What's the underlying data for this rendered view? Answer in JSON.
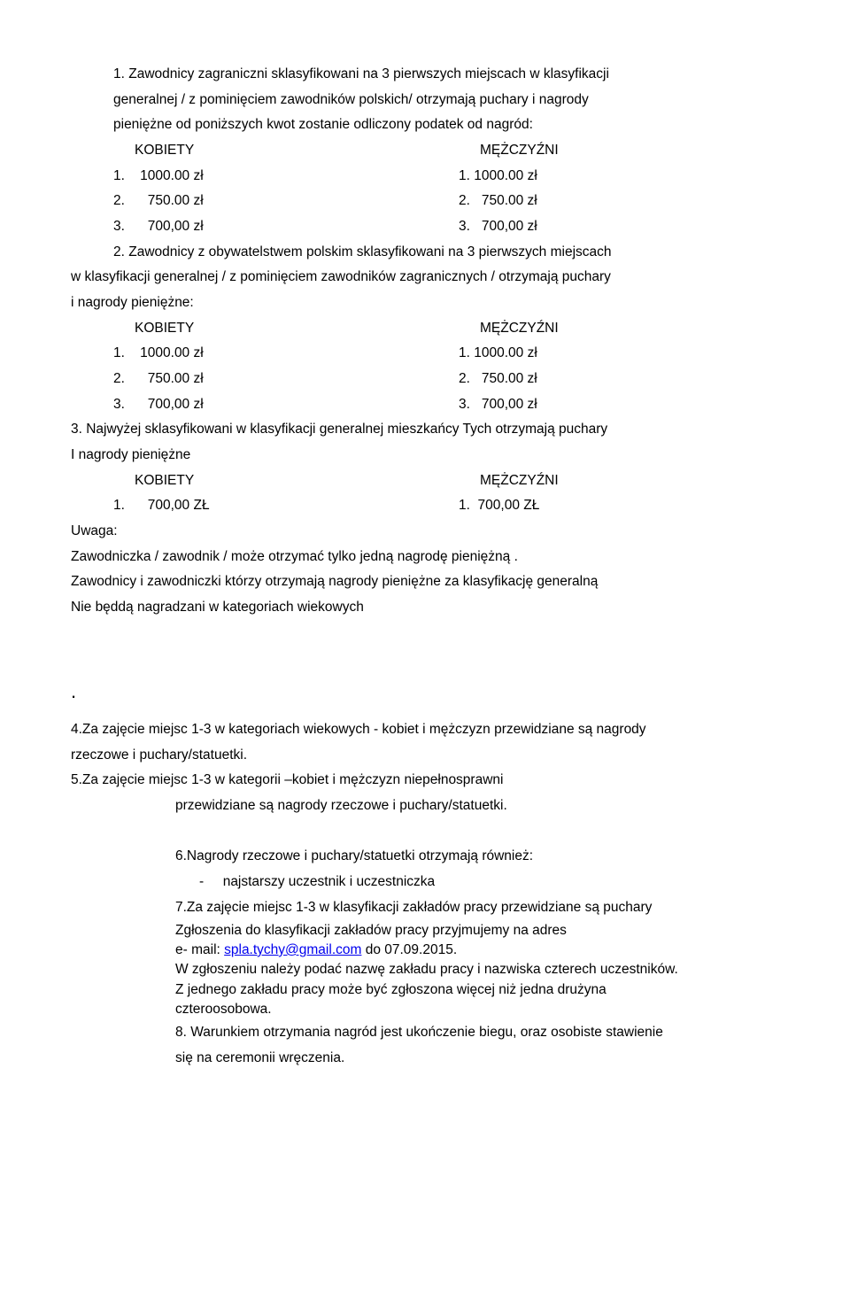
{
  "para1": {
    "line1": "1. Zawodnicy zagraniczni sklasyfikowani na 3 pierwszych miejscach w klasyfikacji",
    "line2": "generalnej / z pominięciem zawodników polskich/ otrzymają puchary i nagrody",
    "line3": "pieniężne od poniższych kwot zostanie odliczony podatek od nagród:"
  },
  "col_kobiety": "KOBIETY",
  "col_mezczyzni": "MĘŻCZYŹNI",
  "prize1": {
    "l": "1.    1000.00 zł",
    "r": "1. 1000.00 zł"
  },
  "prize2": {
    "l": "2.      750.00 zł",
    "r": "2.   750.00 zł"
  },
  "prize3": {
    "l": "3.      700,00 zł",
    "r": "3.   700,00 zł"
  },
  "para2": {
    "line1": "2.   Zawodnicy z obywatelstwem polskim sklasyfikowani na 3 pierwszych miejscach",
    "line2": "w klasyfikacji generalnej / z pominięciem zawodników zagranicznych / otrzymają puchary",
    "line3": " i nagrody pieniężne:"
  },
  "para3": {
    "line1": "3. Najwyżej sklasyfikowani w klasyfikacji generalnej mieszkańcy Tych otrzymają puchary",
    "line2": "I nagrody pieniężne"
  },
  "prize_single": {
    "l": "1.      700,00 ZŁ",
    "r": "1.  700,00 ZŁ"
  },
  "uwaga": "Uwaga:",
  "uwaga_l1": "Zawodniczka / zawodnik / może otrzymać tylko jedną nagrodę pieniężną .",
  "uwaga_l2": "Zawodnicy i zawodniczki którzy otrzymają nagrody pieniężne za klasyfikację generalną",
  "uwaga_l3": "Nie będdą nagradzani w kategoriach wiekowych",
  "dot": ".",
  "p4": {
    "l1": "4.Za zajęcie miejsc 1-3 w kategoriach wiekowych - kobiet i mężczyzn przewidziane są nagrody",
    "l2": "rzeczowe i puchary/statuetki."
  },
  "p5": {
    "l1": "5.Za zajęcie miejsc 1-3 w kategorii –kobiet i mężczyzn niepełnosprawni",
    "l2": "przewidziane są nagrody rzeczowe i puchary/statuetki."
  },
  "p6": {
    "l1": "6.Nagrody rzeczowe i puchary/statuetki otrzymają również:",
    "bullet": "-     najstarszy uczestnik i uczestniczka"
  },
  "p7": {
    "l1": "7.Za zajęcie miejsc 1-3  w klasyfikacji zakładów pracy przewidziane są   puchary"
  },
  "zgl": {
    "l1": "Zgłoszenia do klasyfikacji zakładów pracy przyjmujemy na adres",
    "l2a": "e- mail: ",
    "l2link": "spla.tychy@gmail.com",
    "l2b": "  do 07.09.2015.",
    "l3": "W zgłoszeniu należy podać nazwę zakładu pracy i nazwiska czterech uczestników.",
    "l4": "Z jednego zakładu pracy może być zgłoszona więcej niż jedna drużyna",
    "l5": "czteroosobowa."
  },
  "p8": {
    "l1": "8. Warunkiem otrzymania nagród jest ukończenie biegu, oraz osobiste stawienie",
    "l2": "się na ceremonii wręczenia."
  }
}
